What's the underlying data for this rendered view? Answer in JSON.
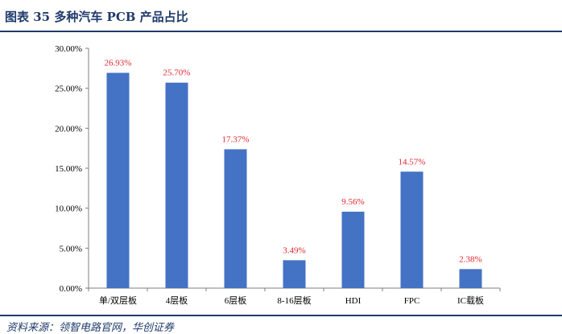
{
  "figure": {
    "title": "图表 35   多种汽车 PCB 产品占比",
    "source": "资料来源：领智电路官网，华创证券"
  },
  "chart_data": {
    "type": "bar",
    "categories": [
      "单/双层板",
      "4层板",
      "6层板",
      "8-16层板",
      "HDI",
      "FPC",
      "IC载板"
    ],
    "values": [
      26.93,
      25.7,
      17.37,
      3.49,
      9.56,
      14.57,
      2.38
    ],
    "data_labels": [
      "26.93%",
      "25.70%",
      "17.37%",
      "3.49%",
      "9.56%",
      "14.57%",
      "2.38%"
    ],
    "ylim": [
      0,
      30
    ],
    "yticks": [
      "0.00%",
      "5.00%",
      "10.00%",
      "15.00%",
      "20.00%",
      "25.00%",
      "30.00%"
    ],
    "xlabel": "",
    "ylabel": "",
    "grid": false,
    "legend": "none",
    "colors": {
      "bar": "#4472c4",
      "data_label": "#e0262f",
      "axis": "#7f7f7f"
    }
  }
}
